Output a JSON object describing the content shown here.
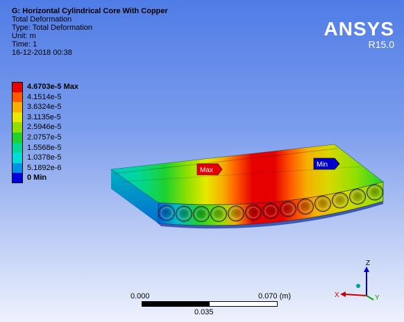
{
  "info": {
    "title": "G: Horizontal Cylindrical Core With Copper",
    "result": "Total Deformation",
    "type": "Type: Total Deformation",
    "unit": "Unit: m",
    "time": "Time: 1",
    "date": "16-12-2018 00:38"
  },
  "logo": {
    "brand": "ANSYS",
    "version": "R15.0"
  },
  "legend": {
    "items": [
      {
        "label": "4.6703e-5 Max",
        "color": "#e60000",
        "bold": true
      },
      {
        "label": "4.1514e-5",
        "color": "#ff5a00",
        "bold": false
      },
      {
        "label": "3.6324e-5",
        "color": "#f5b000",
        "bold": false
      },
      {
        "label": "3.1135e-5",
        "color": "#e8e800",
        "bold": false
      },
      {
        "label": "2.5946e-5",
        "color": "#8fe000",
        "bold": false
      },
      {
        "label": "2.0757e-5",
        "color": "#1ed12f",
        "bold": false
      },
      {
        "label": "1.5568e-5",
        "color": "#00d89a",
        "bold": false
      },
      {
        "label": "1.0378e-5",
        "color": "#00dcd6",
        "bold": false
      },
      {
        "label": "5.1892e-6",
        "color": "#0090e6",
        "bold": false
      },
      {
        "label": "0 Min",
        "color": "#0000dc",
        "bold": true
      }
    ]
  },
  "flags": {
    "max": "Max",
    "min": "Min"
  },
  "scale": {
    "left": "0.000",
    "right": "0.070 (m)",
    "mid": "0.035"
  },
  "triad": {
    "z": "Z",
    "x": "X",
    "y": "Y"
  }
}
